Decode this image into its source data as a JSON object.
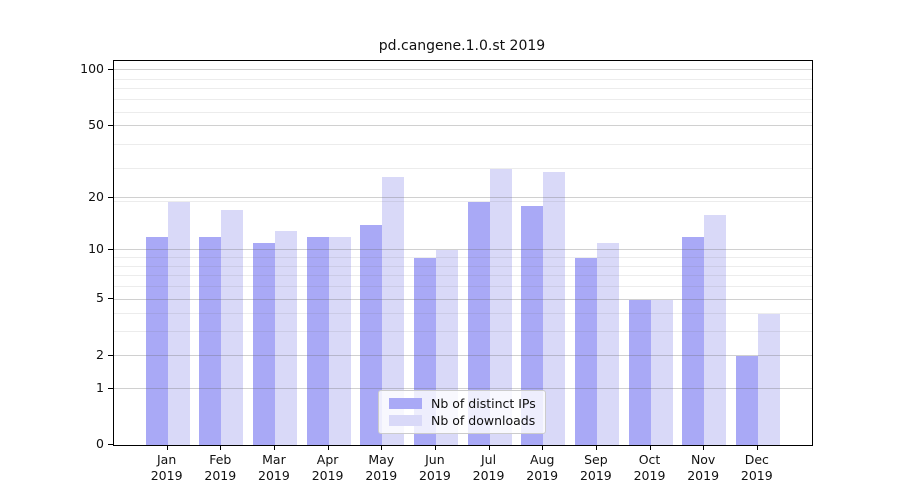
{
  "figure": {
    "title": "pd.cangene.1.0.st 2019"
  },
  "chart_data": {
    "type": "bar",
    "title": "pd.cangene.1.0.st 2019",
    "xlabel": "",
    "ylabel": "",
    "categories": [
      "Jan",
      "Feb",
      "Mar",
      "Apr",
      "May",
      "Jun",
      "Jul",
      "Aug",
      "Sep",
      "Oct",
      "Nov",
      "Dec"
    ],
    "category_year": "2019",
    "series": [
      {
        "name": "Nb of distinct IPs",
        "color": "#a9a9f6",
        "values": [
          12,
          12,
          11,
          12,
          14,
          9,
          19,
          18,
          9,
          5,
          12,
          2
        ]
      },
      {
        "name": "Nb of downloads",
        "color": "#d9d9f8",
        "values": [
          19,
          17,
          13,
          12,
          26,
          10,
          29,
          28,
          11,
          5,
          16,
          4
        ]
      }
    ],
    "yscale": "log1p",
    "ylim": [
      0,
      113
    ],
    "yticks": [
      0,
      1,
      2,
      5,
      10,
      20,
      50,
      100
    ],
    "minor_gridline_values": [
      3,
      4,
      6,
      7,
      8,
      9,
      19,
      29,
      39,
      59,
      69,
      79,
      89
    ],
    "grid": true,
    "legend_position": "lower center"
  },
  "colors": {
    "bar_distinct_ips": "#a9a9f6",
    "bar_downloads": "#d9d9f8",
    "spine": "#000000",
    "grid_major": "#d2d2d2",
    "grid_minor": "#ececec",
    "legend_border": "#cccccc"
  }
}
